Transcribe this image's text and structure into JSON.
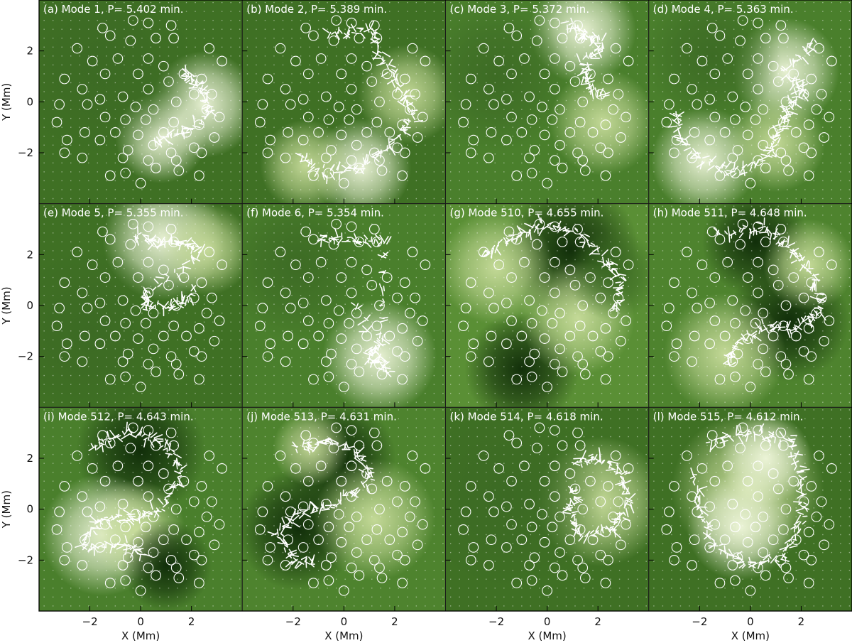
{
  "chart_data": {
    "type": "heatmap",
    "layout": "4 columns x 3 rows of map panels",
    "xlabel": "X (Mm)",
    "ylabel": "Y (Mm)",
    "xlim": [
      -4,
      4
    ],
    "ylim": [
      -4,
      4
    ],
    "xticks": [
      -2,
      0,
      2
    ],
    "yticks": [
      -2,
      0,
      2
    ],
    "colors": {
      "base": "#4a7f2c",
      "dark": "#0e2a08",
      "mid": "#3c6a24",
      "light": "#c9dd9c",
      "bright": "#f0f7dc",
      "marker": "#ffffff"
    },
    "circles": [
      [
        -1.5,
        2.9
      ],
      [
        -0.3,
        3.2
      ],
      [
        0.3,
        3.1
      ],
      [
        1.2,
        3.0
      ],
      [
        -2.5,
        2.1
      ],
      [
        -1.2,
        2.6
      ],
      [
        -0.4,
        2.4
      ],
      [
        0.6,
        2.5
      ],
      [
        1.3,
        2.5
      ],
      [
        -1.9,
        1.6
      ],
      [
        -0.9,
        1.7
      ],
      [
        0.3,
        1.7
      ],
      [
        -3.0,
        0.9
      ],
      [
        -1.4,
        1.1
      ],
      [
        -0.1,
        1.1
      ],
      [
        0.9,
        1.4
      ],
      [
        1.7,
        1.1
      ],
      [
        2.4,
        0.9
      ],
      [
        -2.3,
        0.5
      ],
      [
        -1.6,
        0.1
      ],
      [
        -0.7,
        0.2
      ],
      [
        0.3,
        0.5
      ],
      [
        1.1,
        0.8
      ],
      [
        2.1,
        0.3
      ],
      [
        2.8,
        0.3
      ],
      [
        -3.2,
        -0.1
      ],
      [
        -2.1,
        -0.1
      ],
      [
        -0.2,
        -0.2
      ],
      [
        0.5,
        -0.3
      ],
      [
        1.4,
        0.0
      ],
      [
        2.6,
        -0.3
      ],
      [
        -3.3,
        -0.8
      ],
      [
        -1.4,
        -0.6
      ],
      [
        -0.6,
        -0.7
      ],
      [
        0.2,
        -0.7
      ],
      [
        1.3,
        -0.8
      ],
      [
        2.3,
        -0.9
      ],
      [
        3.1,
        -0.6
      ],
      [
        -2.2,
        -1.2
      ],
      [
        -1.0,
        -1.2
      ],
      [
        -0.1,
        -1.3
      ],
      [
        0.9,
        -1.2
      ],
      [
        1.8,
        -1.2
      ],
      [
        -2.9,
        -1.5
      ],
      [
        -1.6,
        -1.5
      ],
      [
        -0.5,
        -1.9
      ],
      [
        0.5,
        -1.7
      ],
      [
        1.2,
        -2.0
      ],
      [
        2.1,
        -1.8
      ],
      [
        2.9,
        -1.4
      ],
      [
        -2.3,
        -2.2
      ],
      [
        -0.7,
        -2.2
      ],
      [
        0.3,
        -2.3
      ],
      [
        1.4,
        -2.3
      ],
      [
        2.4,
        -2.0
      ],
      [
        -1.2,
        -2.9
      ],
      [
        -0.6,
        -2.8
      ],
      [
        0.0,
        -3.2
      ],
      [
        0.6,
        -2.6
      ],
      [
        1.5,
        -2.7
      ],
      [
        2.3,
        -2.9
      ],
      [
        -3.0,
        -2.0
      ],
      [
        2.7,
        2.1
      ],
      [
        3.2,
        1.6
      ]
    ],
    "panels": [
      {
        "title": "(a) Mode 1, P= 5.402 min.",
        "bg": "#3f7024",
        "blobs": [
          {
            "x": 2.5,
            "y": -0.1,
            "r": 1.4,
            "tone": "bright"
          },
          {
            "x": 0.8,
            "y": -1.4,
            "r": 1.2,
            "tone": "bright"
          },
          {
            "x": -1.5,
            "y": 1.5,
            "r": 2.5,
            "tone": "mid"
          }
        ],
        "arrow_path": [
          [
            1.7,
            1.2
          ],
          [
            2.3,
            0.6
          ],
          [
            2.8,
            -0.3
          ],
          [
            1.6,
            -1.3
          ],
          [
            0.4,
            -1.5
          ]
        ]
      },
      {
        "title": "(b) Mode 2, P= 5.389 min.",
        "bg": "#3f7024",
        "blobs": [
          {
            "x": 0.7,
            "y": -2.6,
            "r": 1.3,
            "tone": "bright"
          },
          {
            "x": -1.5,
            "y": -2.5,
            "r": 1.2,
            "tone": "light"
          },
          {
            "x": 2.5,
            "y": 0.3,
            "r": 1.3,
            "tone": "light"
          }
        ],
        "arrow_path": [
          [
            -0.5,
            2.7
          ],
          [
            1.1,
            2.8
          ],
          [
            1.6,
            1.6
          ],
          [
            2.3,
            0.3
          ],
          [
            2.7,
            -0.7
          ],
          [
            1.8,
            -1.7
          ],
          [
            0.6,
            -2.6
          ],
          [
            -0.7,
            -2.8
          ],
          [
            -1.8,
            -2.0
          ]
        ]
      },
      {
        "title": "(c) Mode 3, P= 5.372 min.",
        "bg": "#4a7f2c",
        "blobs": [
          {
            "x": 1.4,
            "y": 2.8,
            "r": 1.4,
            "tone": "bright"
          },
          {
            "x": -2.0,
            "y": 1.0,
            "r": 2.0,
            "tone": "mid"
          },
          {
            "x": 2.2,
            "y": -0.8,
            "r": 1.4,
            "tone": "light"
          }
        ],
        "arrow_path": [
          [
            0.9,
            3.1
          ],
          [
            1.5,
            2.6
          ],
          [
            2.2,
            2.3
          ],
          [
            1.4,
            1.5
          ],
          [
            1.6,
            0.8
          ],
          [
            2.3,
            0.1
          ]
        ]
      },
      {
        "title": "(d) Mode 4, P= 5.363 min.",
        "bg": "#4a7f2c",
        "blobs": [
          {
            "x": 1.4,
            "y": 1.2,
            "r": 1.4,
            "tone": "bright"
          },
          {
            "x": -1.8,
            "y": -2.3,
            "r": 1.4,
            "tone": "bright"
          },
          {
            "x": 1.0,
            "y": -1.6,
            "r": 1.3,
            "tone": "light"
          },
          {
            "x": -1.5,
            "y": 1.8,
            "r": 1.8,
            "tone": "mid"
          }
        ],
        "arrow_path": [
          [
            2.5,
            2.4
          ],
          [
            1.4,
            1.2
          ],
          [
            2.1,
            0.4
          ],
          [
            1.5,
            -0.2
          ],
          [
            1.2,
            -1.0
          ],
          [
            0.8,
            -2.0
          ],
          [
            -0.5,
            -2.8
          ],
          [
            -1.8,
            -2.3
          ],
          [
            -2.8,
            -1.4
          ],
          [
            -2.8,
            -0.3
          ]
        ]
      },
      {
        "title": "(e) Mode 5, P= 5.355 min.",
        "bg": "#3f7024",
        "blobs": [
          {
            "x": 0.9,
            "y": 2.6,
            "r": 1.6,
            "tone": "bright"
          },
          {
            "x": 2.6,
            "y": 2.2,
            "r": 1.2,
            "tone": "light"
          },
          {
            "x": -2.0,
            "y": -1.0,
            "r": 2.2,
            "tone": "mid"
          }
        ],
        "arrow_path": [
          [
            -0.2,
            2.8
          ],
          [
            0.7,
            2.5
          ],
          [
            1.6,
            2.5
          ],
          [
            2.4,
            2.2
          ],
          [
            0.3,
            0.5
          ],
          [
            0.2,
            -0.1
          ],
          [
            1.4,
            0.0
          ],
          [
            2.2,
            0.6
          ]
        ]
      },
      {
        "title": "(f) Mode 6, P= 5.354 min.",
        "bg": "#4a7f2c",
        "blobs": [
          {
            "x": 1.4,
            "y": -2.0,
            "r": 1.5,
            "tone": "bright"
          },
          {
            "x": -1.8,
            "y": 1.6,
            "r": 2.0,
            "tone": "mid"
          }
        ],
        "arrow_path": [
          [
            -1.0,
            2.7
          ],
          [
            0.3,
            2.6
          ],
          [
            1.6,
            2.5
          ],
          [
            1.5,
            -1.2
          ],
          [
            1.0,
            -2.0
          ],
          [
            1.7,
            -2.5
          ],
          [
            0.3,
            0.4
          ]
        ]
      },
      {
        "title": "(g) Mode 510, P= 4.655 min.",
        "bg": "#5a8f35",
        "blobs": [
          {
            "x": 0.9,
            "y": 2.2,
            "r": 1.8,
            "tone": "dark"
          },
          {
            "x": -1.0,
            "y": -2.5,
            "r": 1.5,
            "tone": "dark"
          },
          {
            "x": -2.0,
            "y": 1.5,
            "r": 1.5,
            "tone": "light"
          },
          {
            "x": 1.2,
            "y": -0.5,
            "r": 1.5,
            "tone": "light"
          },
          {
            "x": 2.6,
            "y": 1.2,
            "r": 1.2,
            "tone": "mid"
          }
        ],
        "arrow_path": [
          [
            -2.5,
            2.0
          ],
          [
            -1.2,
            2.7
          ],
          [
            -0.3,
            3.2
          ],
          [
            1.2,
            2.9
          ],
          [
            2.3,
            1.8
          ],
          [
            3.0,
            1.0
          ],
          [
            2.6,
            -0.4
          ]
        ]
      },
      {
        "title": "(h) Mode 511, P= 4.648 min.",
        "bg": "#4e832e",
        "blobs": [
          {
            "x": 0.2,
            "y": 2.5,
            "r": 1.4,
            "tone": "dark"
          },
          {
            "x": 1.5,
            "y": -0.6,
            "r": 1.6,
            "tone": "dark"
          },
          {
            "x": -1.0,
            "y": -1.9,
            "r": 1.6,
            "tone": "light"
          },
          {
            "x": 2.3,
            "y": 1.6,
            "r": 1.2,
            "tone": "light"
          }
        ],
        "arrow_path": [
          [
            -1.2,
            2.8
          ],
          [
            0.5,
            3.1
          ],
          [
            1.5,
            2.3
          ],
          [
            2.3,
            1.4
          ],
          [
            2.8,
            -0.3
          ],
          [
            1.7,
            -0.9
          ],
          [
            0.6,
            -0.8
          ],
          [
            -0.6,
            -1.6
          ],
          [
            -0.8,
            -2.4
          ]
        ]
      },
      {
        "title": "(i) Mode 512, P= 4.643 min.",
        "bg": "#4a7f2c",
        "blobs": [
          {
            "x": 0.0,
            "y": 2.3,
            "r": 1.7,
            "tone": "dark"
          },
          {
            "x": -1.5,
            "y": -1.0,
            "r": 1.6,
            "tone": "bright"
          },
          {
            "x": -0.2,
            "y": -0.8,
            "r": 1.3,
            "tone": "light"
          },
          {
            "x": 1.0,
            "y": -2.2,
            "r": 1.2,
            "tone": "dark"
          }
        ],
        "arrow_path": [
          [
            -1.8,
            2.4
          ],
          [
            -0.5,
            3.0
          ],
          [
            0.9,
            2.6
          ],
          [
            1.6,
            1.6
          ],
          [
            0.8,
            0.0
          ],
          [
            -0.3,
            -0.3
          ],
          [
            -1.6,
            -0.4
          ],
          [
            -2.3,
            -1.5
          ],
          [
            -0.6,
            -1.4
          ],
          [
            0.2,
            -1.8
          ]
        ]
      },
      {
        "title": "(j) Mode 513, P= 4.631 min.",
        "bg": "#4e832e",
        "blobs": [
          {
            "x": -1.8,
            "y": -0.8,
            "r": 1.6,
            "tone": "dark"
          },
          {
            "x": -0.2,
            "y": 2.0,
            "r": 1.5,
            "tone": "dark"
          },
          {
            "x": -1.3,
            "y": 2.4,
            "r": 1.0,
            "tone": "light"
          },
          {
            "x": 1.2,
            "y": -0.4,
            "r": 1.6,
            "tone": "light"
          }
        ],
        "arrow_path": [
          [
            -1.8,
            2.4
          ],
          [
            -0.6,
            2.7
          ],
          [
            0.6,
            2.2
          ],
          [
            1.0,
            1.2
          ],
          [
            -0.4,
            0.1
          ],
          [
            -1.6,
            -0.1
          ],
          [
            -2.6,
            -0.9
          ],
          [
            -2.0,
            -2.0
          ],
          [
            -1.0,
            -2.1
          ]
        ]
      },
      {
        "title": "(k) Mode 514, P= 4.618 min.",
        "bg": "#3f7024",
        "blobs": [
          {
            "x": 2.1,
            "y": 0.3,
            "r": 1.7,
            "tone": "light"
          },
          {
            "x": -1.5,
            "y": 0.5,
            "r": 2.5,
            "tone": "mid"
          }
        ],
        "arrow_path": [
          [
            1.2,
            1.8
          ],
          [
            2.0,
            2.1
          ],
          [
            3.0,
            1.3
          ],
          [
            3.2,
            0.2
          ],
          [
            2.6,
            -0.8
          ],
          [
            1.4,
            -1.0
          ],
          [
            0.9,
            0.0
          ],
          [
            1.1,
            1.0
          ]
        ]
      },
      {
        "title": "(l) Mode 515, P= 4.612 min.",
        "bg": "#3f7024",
        "blobs": [
          {
            "x": -0.1,
            "y": 0.8,
            "r": 2.0,
            "tone": "light"
          },
          {
            "x": -0.4,
            "y": -0.7,
            "r": 1.4,
            "tone": "bright"
          },
          {
            "x": 0.6,
            "y": 2.0,
            "r": 1.2,
            "tone": "bright"
          }
        ],
        "arrow_path": [
          [
            -1.6,
            2.6
          ],
          [
            0.0,
            3.0
          ],
          [
            1.5,
            2.8
          ],
          [
            2.1,
            1.2
          ],
          [
            2.0,
            -0.5
          ],
          [
            1.2,
            -1.9
          ],
          [
            -0.2,
            -2.1
          ],
          [
            -1.4,
            -1.4
          ],
          [
            -2.0,
            0.0
          ],
          [
            -2.2,
            1.5
          ]
        ]
      }
    ]
  }
}
